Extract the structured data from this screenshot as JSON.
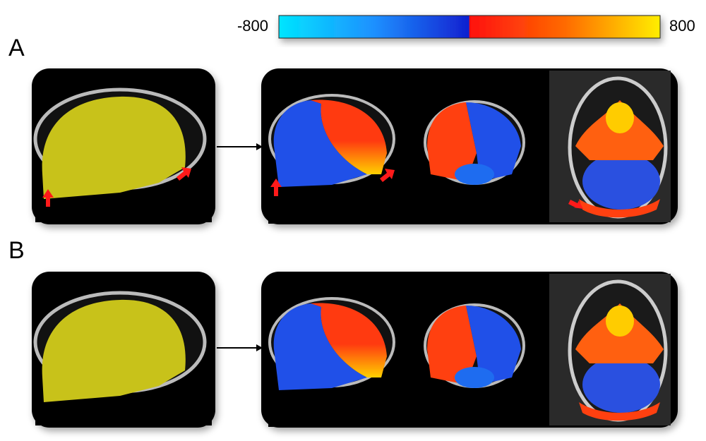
{
  "colorbar": {
    "min": -800,
    "max": 800
  },
  "panels": [
    {
      "label": "A"
    },
    {
      "label": "B"
    }
  ]
}
